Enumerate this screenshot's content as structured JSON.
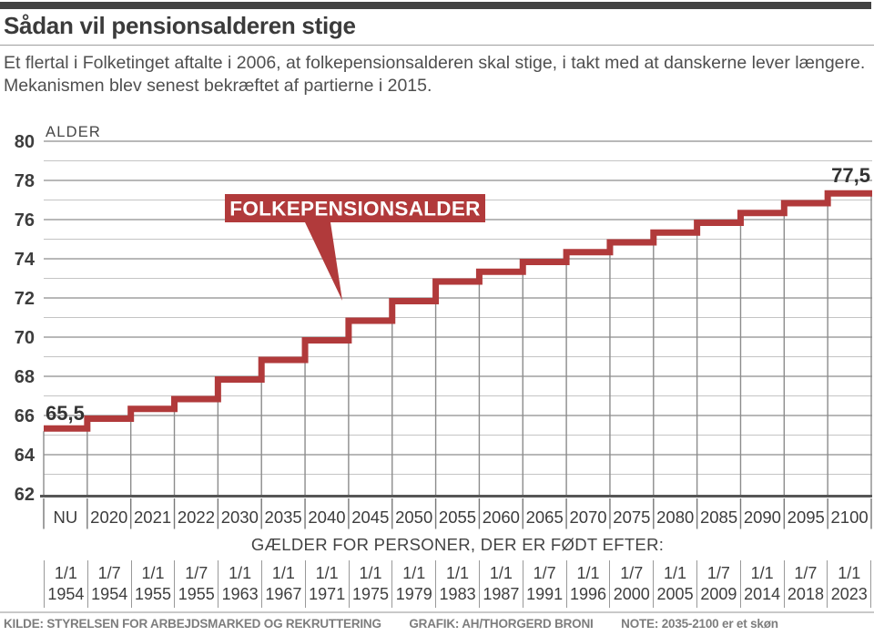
{
  "header": {
    "title": "Sådan vil pensionsalderen stige",
    "subtitle": "Et flertal i Folketinget aftalte i 2006, at folkepensionsalderen skal stige, i takt med at danskerne lever længere. Mekanismen blev senest bekræftet af partierne i 2015."
  },
  "chart_data": {
    "type": "line",
    "step": true,
    "annotation": "FOLKEPENSIONSALDER",
    "ylabel": "ALDER",
    "xlabel": "",
    "ylim": [
      62,
      80
    ],
    "y_ticks": [
      62,
      64,
      66,
      68,
      70,
      72,
      74,
      76,
      78,
      80
    ],
    "grid": "horizontal every 1 year, full grid below the step line",
    "categories": [
      "NU",
      "2020",
      "2021",
      "2022",
      "2030",
      "2035",
      "2040",
      "2045",
      "2050",
      "2055",
      "2060",
      "2065",
      "2070",
      "2075",
      "2080",
      "2085",
      "2090",
      "2095",
      "2100"
    ],
    "values": [
      65.5,
      66,
      66.5,
      67,
      68,
      69,
      70,
      71,
      72,
      73,
      73.5,
      74,
      74.5,
      75,
      75.5,
      76,
      76.5,
      77,
      77.5
    ],
    "first_value_label": "65,5",
    "last_value_label": "77,5",
    "line_color": "#b13a3b",
    "secondary_axis": {
      "title": "GÆLDER FOR PERSONER, DER ER FØDT EFTER:",
      "labels": [
        "1/1 1954",
        "1/7 1954",
        "1/1 1955",
        "1/7 1955",
        "1/1 1963",
        "1/1 1967",
        "1/1 1971",
        "1/1 1975",
        "1/1 1979",
        "1/1 1983",
        "1/1 1987",
        "1/7 1991",
        "1/1 1996",
        "1/7 2000",
        "1/1 2005",
        "1/7 2009",
        "1/1 2014",
        "1/7 2018",
        "1/1 2023"
      ]
    }
  },
  "footer": {
    "kilde": "KILDE: STYRELSEN FOR ARBEJDSMARKED OG REKRUTTERING",
    "grafik": "GRAFIK: AH/THORGERD BRONI",
    "note": "NOTE: 2035-2100 er et skøn"
  }
}
